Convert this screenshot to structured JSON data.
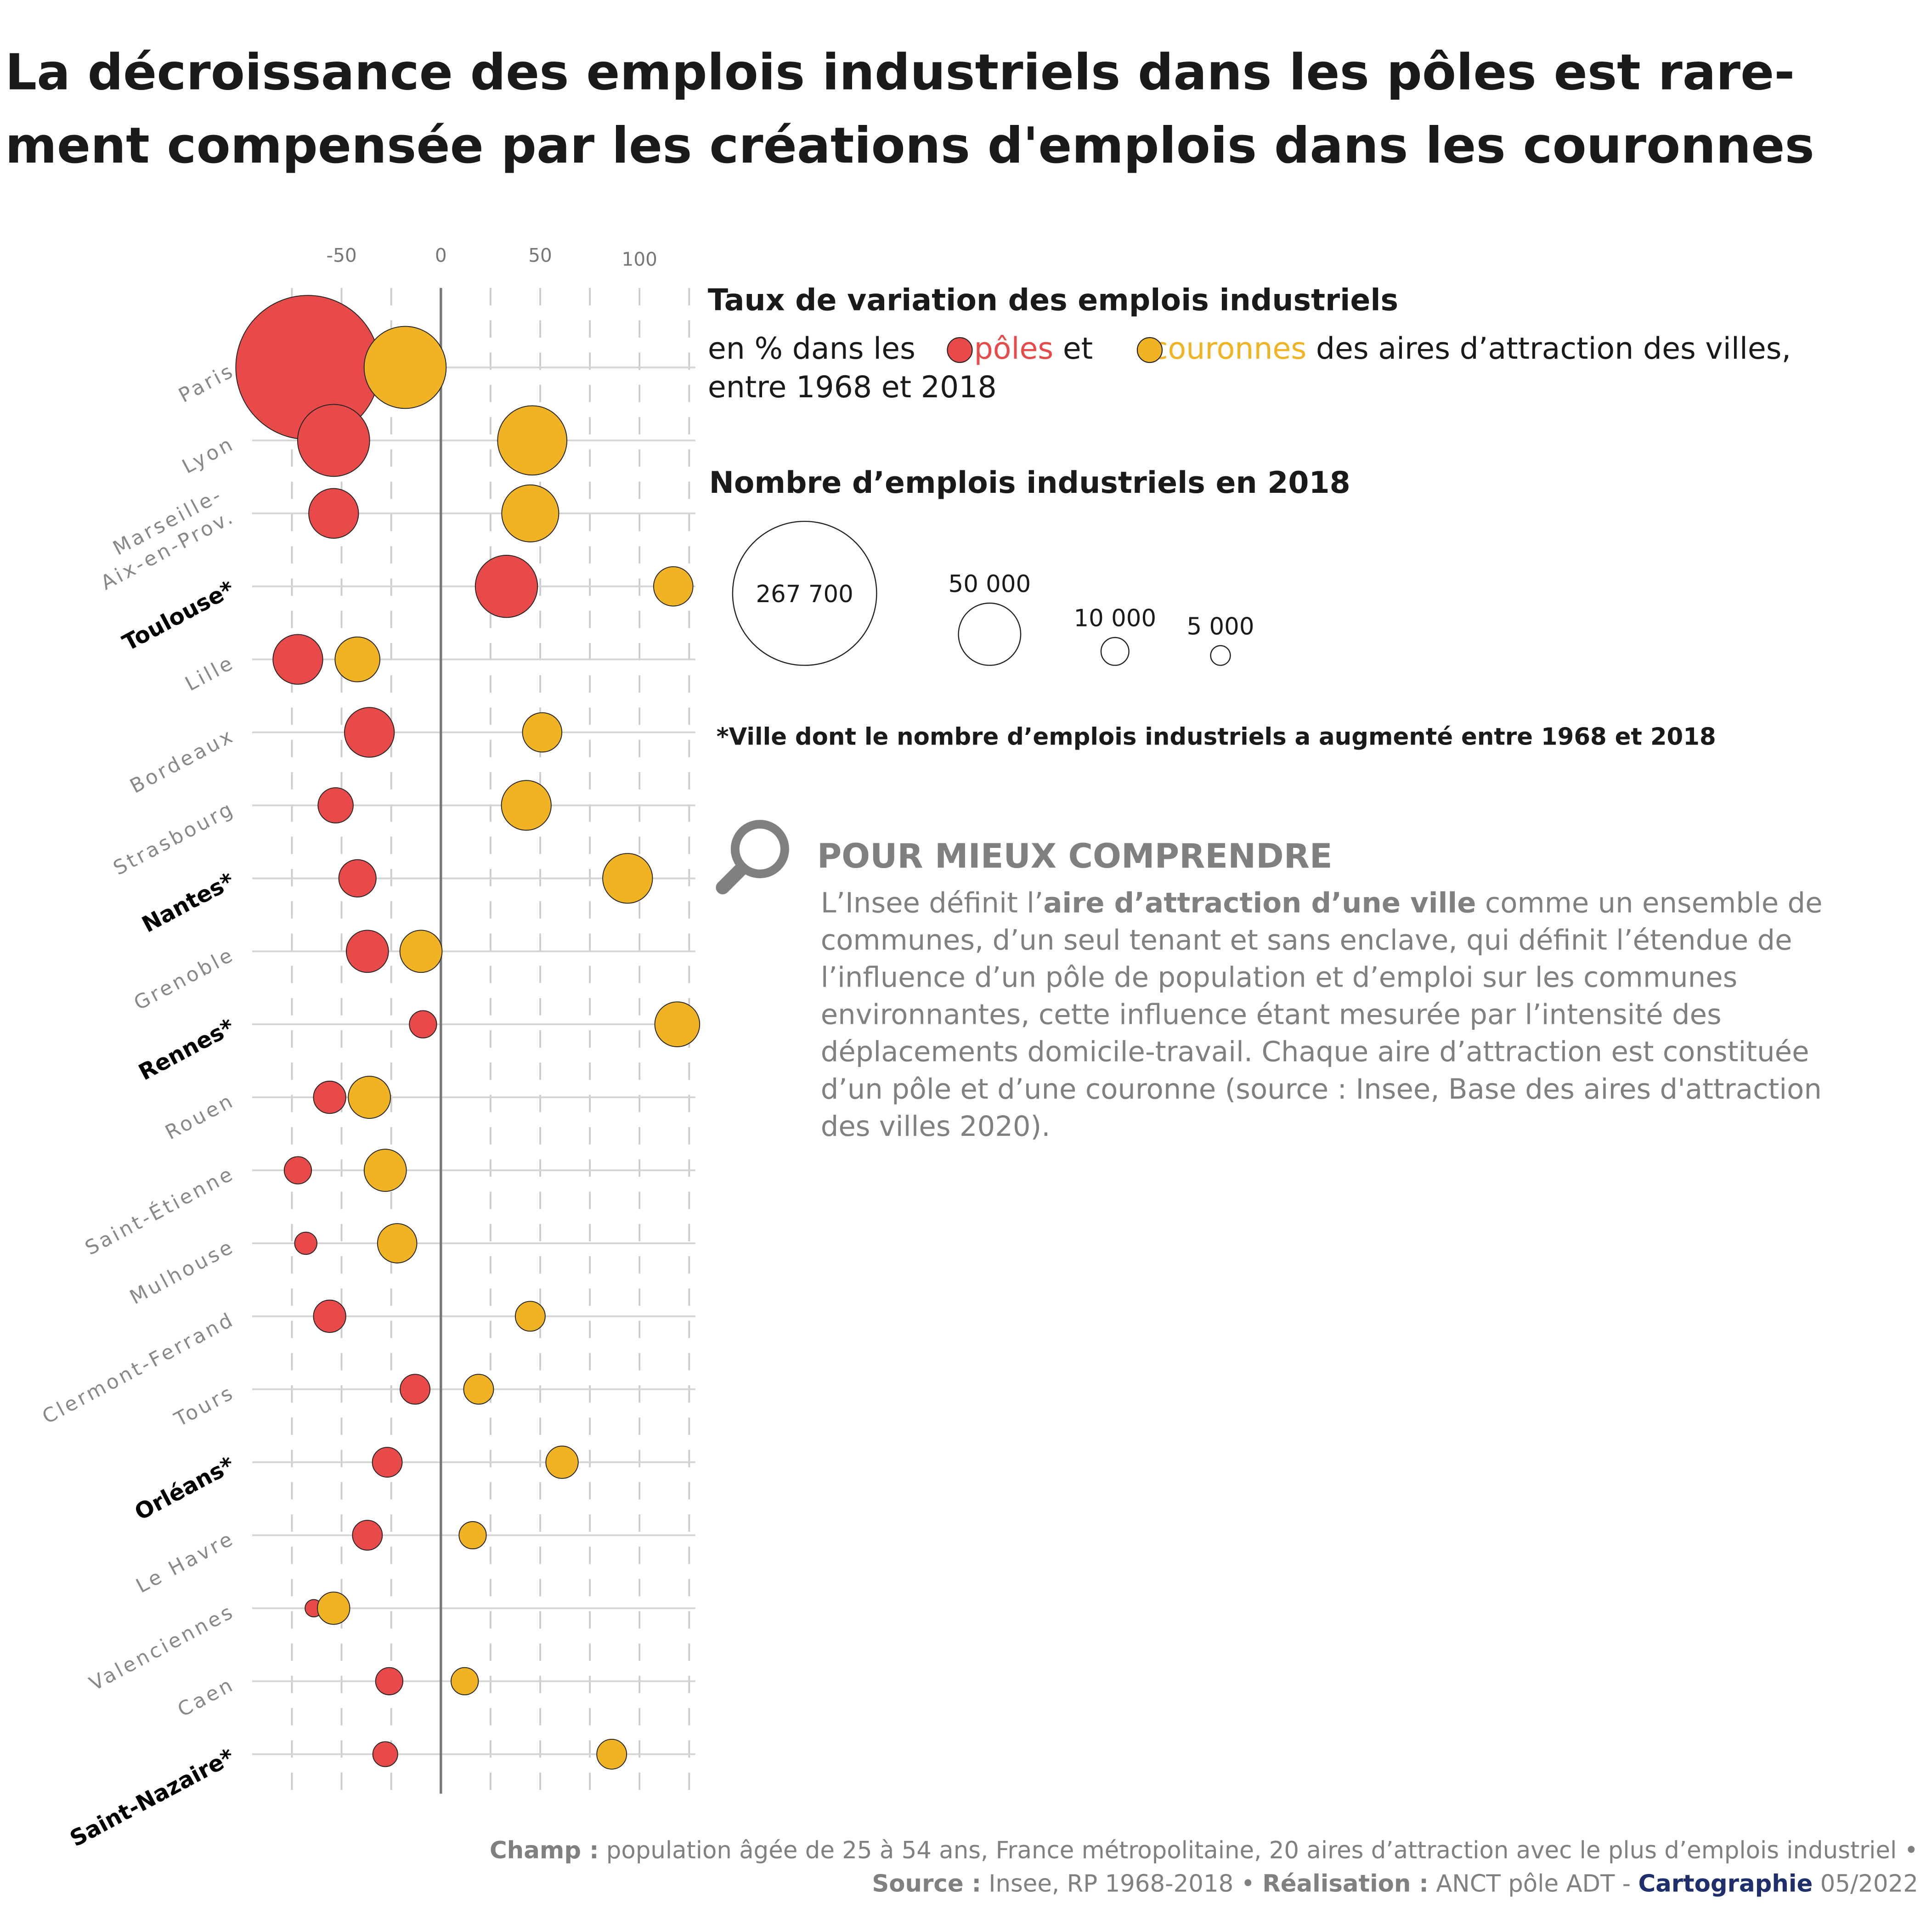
{
  "title_lines": [
    "La décroissance des emplois industriels dans les pôles est rare-",
    "ment compensée par les créations d'emplois dans les couronnes"
  ],
  "colors": {
    "poles": "#e84a4a",
    "couronnes": "#f0b323",
    "cartographie": "#1f2f6b"
  },
  "legend": {
    "heading": "Taux de variation des emplois industriels",
    "line1_a": "en % dans les",
    "poles": "pôles",
    "et": "et",
    "couronnes": "couronnes",
    "line1_b": "des aires d’attraction des villes,",
    "line2": "entre 1968 et 2018",
    "size_heading": "Nombre d’emplois industriels en 2018",
    "size_labels": [
      "267 700",
      "50 000",
      "10 000",
      "5 000"
    ],
    "size_values": [
      267700,
      50000,
      10000,
      5000
    ],
    "note": "*Ville dont le nombre d’emplois industriels a augmenté entre 1968 et 2018"
  },
  "pmc": {
    "icon": "magnifier-icon",
    "heading": "POUR MIEUX COMPRENDRE",
    "lines": [
      "L’Insee définit l’aire d’attraction d’une ville comme un ensemble de",
      "communes, d’un seul tenant et sans enclave, qui définit l’étendue de",
      "l’influence d’un pôle de population et d’emploi sur les communes",
      "environnantes, cette influence étant mesurée par l’intensité des",
      "déplacements domicile-travail. Chaque aire d’attraction est constituée",
      "d’un pôle et d’une couronne (source : Insee, Base des aires d'attraction",
      "des villes 2020)."
    ]
  },
  "footer": {
    "champ_label": "Champ :",
    "champ": " population âgée de 25 à 54 ans, France métropolitaine, 20 aires d’attraction avec le plus d’emplois industriel •",
    "source_label": "Source :",
    "source": " Insee, RP 1968-2018 • ",
    "real_label": "Réalisation :",
    "real": " ANCT pôle ADT - ",
    "carto": "Cartographie",
    "date": " 05/2022"
  },
  "chart_data": {
    "type": "scatter",
    "title": "La décroissance des emplois industriels dans les pôles est rarement compensée par les créations d'emplois dans les couronnes",
    "xlim": [
      -75,
      125
    ],
    "x_ticks": [
      -50,
      0,
      50,
      100
    ],
    "x_tick_labels": [
      "-50",
      "0",
      "50",
      "100"
    ],
    "grid": true,
    "series": [
      {
        "name": "pôles"
      },
      {
        "name": "couronnes"
      }
    ],
    "cities": [
      {
        "label": "Paris",
        "star": false,
        "pole": -67,
        "pole_n": 267700,
        "cour": -18,
        "cour_n": 87000
      },
      {
        "label": "Lyon",
        "star": false,
        "pole": -54,
        "pole_n": 67000,
        "cour": 46,
        "cour_n": 62000
      },
      {
        "label": "Marseille-|Aix-en-Prov.",
        "star": false,
        "pole": -54,
        "pole_n": 32000,
        "cour": 45,
        "cour_n": 42000
      },
      {
        "label": "Toulouse*",
        "star": true,
        "pole": 33,
        "pole_n": 50000,
        "cour": 117,
        "cour_n": 20000
      },
      {
        "label": "Lille",
        "star": false,
        "pole": -72,
        "pole_n": 32000,
        "cour": -42,
        "cour_n": 26000
      },
      {
        "label": "Bordeaux",
        "star": false,
        "pole": -36,
        "pole_n": 32000,
        "cour": 51,
        "cour_n": 20000
      },
      {
        "label": "Strasbourg",
        "star": false,
        "pole": -53,
        "pole_n": 16000,
        "cour": 43,
        "cour_n": 32000
      },
      {
        "label": "Nantes*",
        "star": true,
        "pole": -42,
        "pole_n": 18000,
        "cour": 94,
        "cour_n": 32000
      },
      {
        "label": "Grenoble",
        "star": false,
        "pole": -37,
        "pole_n": 23000,
        "cour": -10,
        "cour_n": 23000
      },
      {
        "label": "Rennes*",
        "star": true,
        "pole": -9,
        "pole_n": 9600,
        "cour": 119,
        "cour_n": 26000
      },
      {
        "label": "Rouen",
        "star": false,
        "pole": -56,
        "pole_n": 13500,
        "cour": -36,
        "cour_n": 23000
      },
      {
        "label": "Saint-Étienne",
        "star": false,
        "pole": -72,
        "pole_n": 9600,
        "cour": -28,
        "cour_n": 23000
      },
      {
        "label": "Mulhouse",
        "star": false,
        "pole": -68,
        "pole_n": 6400,
        "cour": -22,
        "cour_n": 20000
      },
      {
        "label": "Clermont-Ferrand",
        "star": false,
        "pole": -56,
        "pole_n": 13500,
        "cour": 45,
        "cour_n": 11500
      },
      {
        "label": "Tours",
        "star": false,
        "pole": -13,
        "pole_n": 11500,
        "cour": 19,
        "cour_n": 11500
      },
      {
        "label": "Orléans*",
        "star": true,
        "pole": -27,
        "pole_n": 11500,
        "cour": 61,
        "cour_n": 13500
      },
      {
        "label": "Le  Havre",
        "star": false,
        "pole": -37,
        "pole_n": 11500,
        "cour": 16,
        "cour_n": 9600
      },
      {
        "label": "Valenciennes",
        "star": false,
        "pole": -64,
        "pole_n": 3900,
        "cour": -54,
        "cour_n": 13500
      },
      {
        "label": "Caen",
        "star": false,
        "pole": -26,
        "pole_n": 9600,
        "cour": 12,
        "cour_n": 9600
      },
      {
        "label": "Saint-Nazaire*",
        "star": true,
        "pole": -28,
        "pole_n": 8000,
        "cour": 86,
        "cour_n": 11500
      }
    ]
  }
}
